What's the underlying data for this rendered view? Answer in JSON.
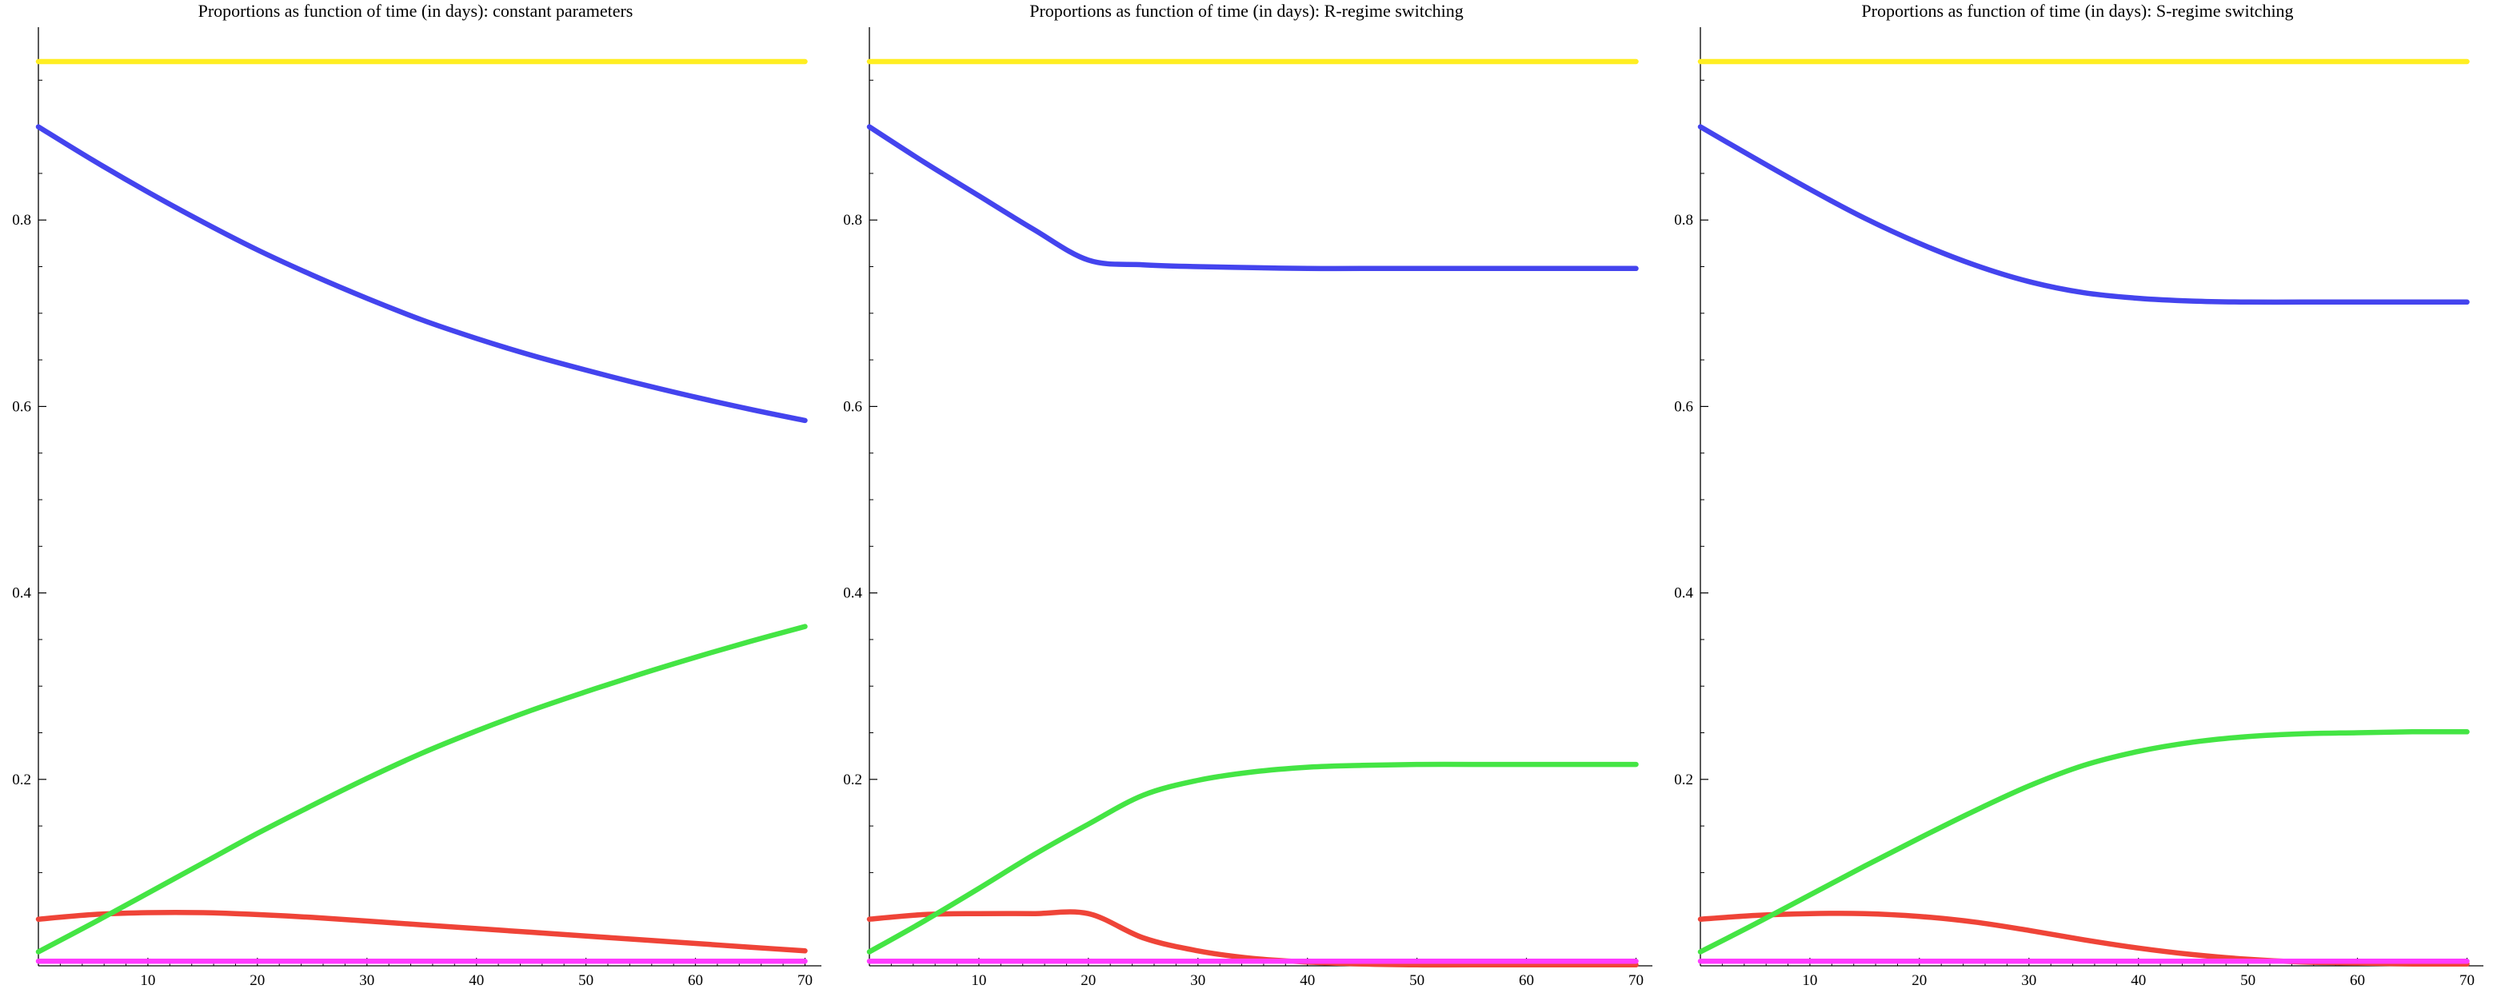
{
  "page": {
    "background": "#ffffff"
  },
  "charts_meta": {
    "axis_color": "#000000",
    "tick_label_size": 19,
    "title_size": 22,
    "line_width": 6.5,
    "x_minor_step": 2,
    "y_minor_step": 0.05
  },
  "chart_data": [
    {
      "type": "line",
      "title": "Proportions as function of time (in days): constant parameters",
      "xlabel": "",
      "ylabel": "",
      "xlim": [
        0,
        71.5
      ],
      "ylim": [
        0,
        1.0
      ],
      "xticks": [
        10,
        20,
        30,
        40,
        50,
        60,
        70
      ],
      "yticks": [
        0.2,
        0.4,
        0.6,
        0.8
      ],
      "grid": false,
      "legend": "none",
      "x": [
        0,
        5,
        10,
        15,
        20,
        25,
        30,
        35,
        40,
        45,
        50,
        55,
        60,
        65,
        70
      ],
      "series": [
        {
          "name": "blue",
          "color": "#4444ee",
          "values": [
            0.9,
            0.864,
            0.83,
            0.798,
            0.768,
            0.741,
            0.716,
            0.693,
            0.673,
            0.655,
            0.639,
            0.624,
            0.61,
            0.597,
            0.585
          ]
        },
        {
          "name": "red",
          "color": "#ef4438",
          "values": [
            0.05,
            0.055,
            0.057,
            0.057,
            0.055,
            0.052,
            0.048,
            0.044,
            0.04,
            0.036,
            0.032,
            0.028,
            0.024,
            0.02,
            0.016
          ]
        },
        {
          "name": "green",
          "color": "#44e544",
          "values": [
            0.015,
            0.046,
            0.078,
            0.11,
            0.142,
            0.172,
            0.201,
            0.228,
            0.252,
            0.274,
            0.294,
            0.313,
            0.331,
            0.348,
            0.364
          ]
        },
        {
          "name": "yellow",
          "color": "#ffee22",
          "values": [
            0.97,
            0.97,
            0.97,
            0.97,
            0.97,
            0.97,
            0.97,
            0.97,
            0.97,
            0.97,
            0.97,
            0.97,
            0.97,
            0.97,
            0.97
          ]
        },
        {
          "name": "magenta",
          "color": "#ff3bff",
          "values": [
            0.005,
            0.005,
            0.005,
            0.005,
            0.005,
            0.005,
            0.005,
            0.005,
            0.005,
            0.005,
            0.005,
            0.005,
            0.005,
            0.005,
            0.005
          ]
        }
      ]
    },
    {
      "type": "line",
      "title": "Proportions as function of time (in days): R-regime switching",
      "xlabel": "",
      "ylabel": "",
      "xlim": [
        0,
        71.5
      ],
      "ylim": [
        0,
        1.0
      ],
      "xticks": [
        10,
        20,
        30,
        40,
        50,
        60,
        70
      ],
      "yticks": [
        0.2,
        0.4,
        0.6,
        0.8
      ],
      "grid": false,
      "legend": "none",
      "x": [
        0,
        5,
        10,
        15,
        20,
        25,
        30,
        35,
        40,
        45,
        50,
        55,
        60,
        65,
        70
      ],
      "series": [
        {
          "name": "blue",
          "color": "#4444ee",
          "values": [
            0.9,
            0.862,
            0.826,
            0.79,
            0.757,
            0.752,
            0.75,
            0.749,
            0.748,
            0.748,
            0.748,
            0.748,
            0.748,
            0.748,
            0.748
          ]
        },
        {
          "name": "red",
          "color": "#ef4438",
          "values": [
            0.05,
            0.055,
            0.056,
            0.056,
            0.056,
            0.03,
            0.016,
            0.008,
            0.004,
            0.002,
            0.001,
            0.001,
            0.001,
            0.001,
            0.001
          ]
        },
        {
          "name": "green",
          "color": "#44e544",
          "values": [
            0.015,
            0.048,
            0.083,
            0.119,
            0.152,
            0.183,
            0.199,
            0.208,
            0.213,
            0.215,
            0.216,
            0.216,
            0.216,
            0.216,
            0.216
          ]
        },
        {
          "name": "yellow",
          "color": "#ffee22",
          "values": [
            0.97,
            0.97,
            0.97,
            0.97,
            0.97,
            0.97,
            0.97,
            0.97,
            0.97,
            0.97,
            0.97,
            0.97,
            0.97,
            0.97,
            0.97
          ]
        },
        {
          "name": "magenta",
          "color": "#ff3bff",
          "values": [
            0.005,
            0.005,
            0.005,
            0.005,
            0.005,
            0.005,
            0.005,
            0.005,
            0.005,
            0.005,
            0.005,
            0.005,
            0.005,
            0.005,
            0.005
          ]
        }
      ]
    },
    {
      "type": "line",
      "title": "Proportions as function of time (in days): S-regime switching",
      "xlabel": "",
      "ylabel": "",
      "xlim": [
        0,
        71.5
      ],
      "ylim": [
        0,
        1.0
      ],
      "xticks": [
        10,
        20,
        30,
        40,
        50,
        60,
        70
      ],
      "yticks": [
        0.2,
        0.4,
        0.6,
        0.8
      ],
      "grid": false,
      "legend": "none",
      "x": [
        0,
        5,
        10,
        15,
        20,
        25,
        30,
        35,
        40,
        45,
        50,
        55,
        60,
        65,
        70
      ],
      "series": [
        {
          "name": "blue",
          "color": "#4444ee",
          "values": [
            0.9,
            0.866,
            0.833,
            0.802,
            0.775,
            0.752,
            0.734,
            0.722,
            0.716,
            0.713,
            0.712,
            0.712,
            0.712,
            0.712,
            0.712
          ]
        },
        {
          "name": "red",
          "color": "#ef4438",
          "values": [
            0.05,
            0.054,
            0.056,
            0.056,
            0.053,
            0.047,
            0.038,
            0.028,
            0.019,
            0.012,
            0.007,
            0.004,
            0.003,
            0.002,
            0.002
          ]
        },
        {
          "name": "green",
          "color": "#44e544",
          "values": [
            0.015,
            0.045,
            0.076,
            0.107,
            0.137,
            0.166,
            0.193,
            0.215,
            0.23,
            0.24,
            0.246,
            0.249,
            0.25,
            0.251,
            0.251
          ]
        },
        {
          "name": "yellow",
          "color": "#ffee22",
          "values": [
            0.97,
            0.97,
            0.97,
            0.97,
            0.97,
            0.97,
            0.97,
            0.97,
            0.97,
            0.97,
            0.97,
            0.97,
            0.97,
            0.97,
            0.97
          ]
        },
        {
          "name": "magenta",
          "color": "#ff3bff",
          "values": [
            0.005,
            0.005,
            0.005,
            0.005,
            0.005,
            0.005,
            0.005,
            0.005,
            0.005,
            0.005,
            0.005,
            0.005,
            0.005,
            0.005,
            0.005
          ]
        }
      ]
    }
  ]
}
